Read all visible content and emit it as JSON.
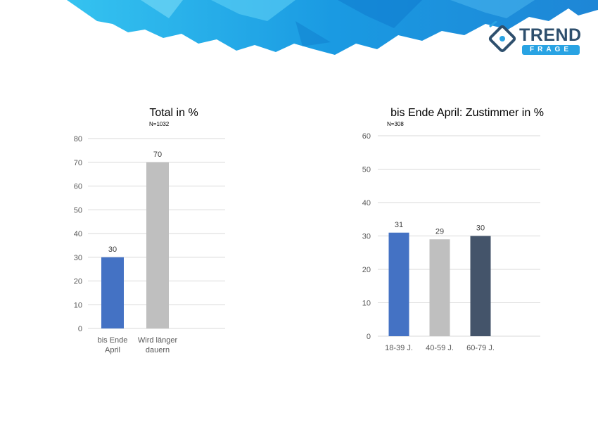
{
  "logo": {
    "word": "TREND",
    "sub": "FRAGE"
  },
  "colors": {
    "blue": "#4472c4",
    "gray": "#bfbfbf",
    "navy": "#44546a",
    "banner": "#1e9be0"
  },
  "chart_data": [
    {
      "type": "bar",
      "title": "Total in %",
      "subtitle": "N=1032",
      "categories": [
        "bis Ende April",
        "Wird länger dauern"
      ],
      "category_lines": [
        [
          "bis Ende",
          "April"
        ],
        [
          "Wird länger",
          "dauern"
        ]
      ],
      "values": [
        30,
        70
      ],
      "colors": [
        "#4472c4",
        "#bfbfbf"
      ],
      "ylim": [
        0,
        80
      ],
      "yticks": [
        0,
        10,
        20,
        30,
        40,
        50,
        60,
        70,
        80
      ],
      "grid": true,
      "xlabel": "",
      "ylabel": ""
    },
    {
      "type": "bar",
      "title": "bis Ende April:  Zustimmer in %",
      "subtitle": "N=308",
      "categories": [
        "18-39 J.",
        "40-59 J.",
        "60-79 J."
      ],
      "category_lines": [
        [
          "18-39 J."
        ],
        [
          "40-59 J."
        ],
        [
          "60-79 J."
        ]
      ],
      "values": [
        31,
        29,
        30
      ],
      "colors": [
        "#4472c4",
        "#bfbfbf",
        "#44546a"
      ],
      "ylim": [
        0,
        60
      ],
      "yticks": [
        0,
        10,
        20,
        30,
        40,
        50,
        60
      ],
      "grid": true,
      "xlabel": "",
      "ylabel": ""
    }
  ]
}
